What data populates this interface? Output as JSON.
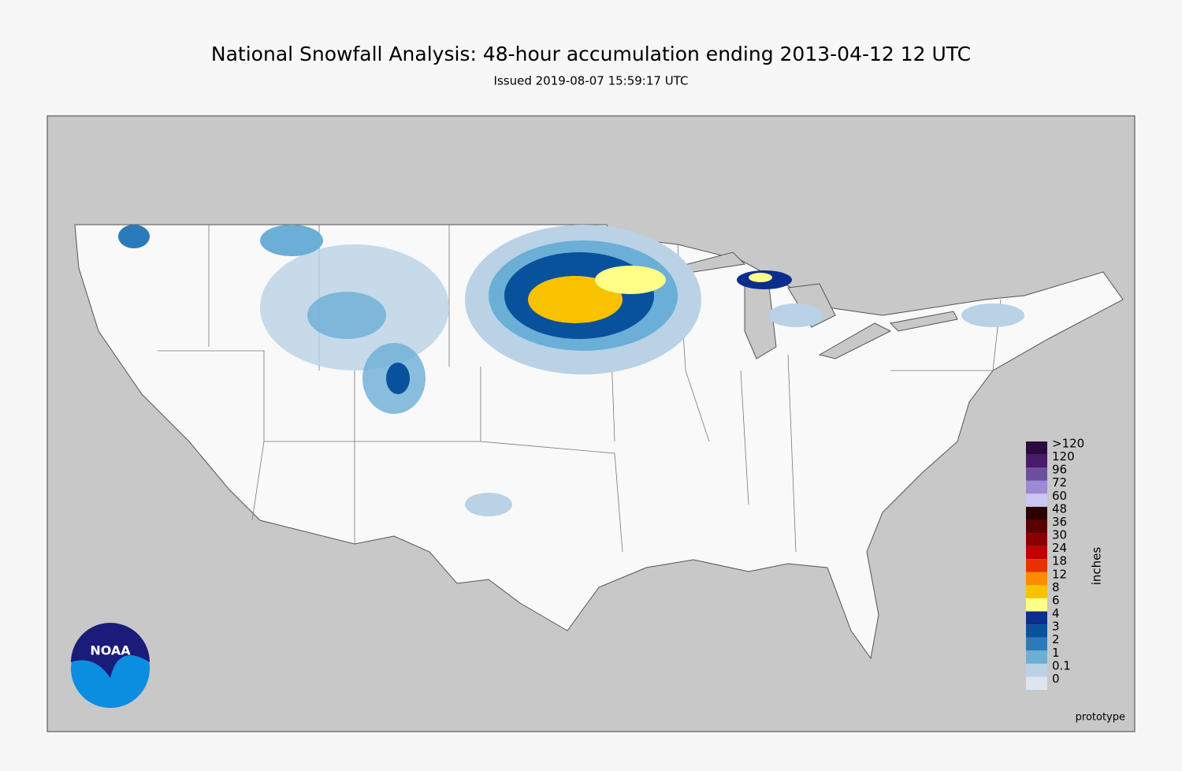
{
  "header": {
    "title": "National Snowfall Analysis: 48-hour accumulation ending 2013-04-12 12 UTC",
    "subtitle": "Issued 2019-08-07 15:59:17 UTC"
  },
  "legend": {
    "unit": "inches",
    "items": [
      {
        "label": ">120",
        "color": "#2b0b3f"
      },
      {
        "label": "120",
        "color": "#4a1a6b"
      },
      {
        "label": "96",
        "color": "#6b4fa0"
      },
      {
        "label": "72",
        "color": "#9b8ad6"
      },
      {
        "label": "60",
        "color": "#cbc6f2"
      },
      {
        "label": "48",
        "color": "#2b0000"
      },
      {
        "label": "36",
        "color": "#5c0000"
      },
      {
        "label": "30",
        "color": "#8a0000"
      },
      {
        "label": "24",
        "color": "#c20000"
      },
      {
        "label": "18",
        "color": "#e83000"
      },
      {
        "label": "12",
        "color": "#ff8c00"
      },
      {
        "label": "8",
        "color": "#f9c200"
      },
      {
        "label": "6",
        "color": "#ffff88"
      },
      {
        "label": "4",
        "color": "#0b2d8c"
      },
      {
        "label": "3",
        "color": "#08519c"
      },
      {
        "label": "2",
        "color": "#2b7bba"
      },
      {
        "label": "1",
        "color": "#6baed6"
      },
      {
        "label": "0.1",
        "color": "#b9d2e6"
      },
      {
        "label": "0",
        "color": "#dde6ef"
      }
    ]
  },
  "footer": {
    "note": "prototype",
    "logo": "NOAA"
  }
}
